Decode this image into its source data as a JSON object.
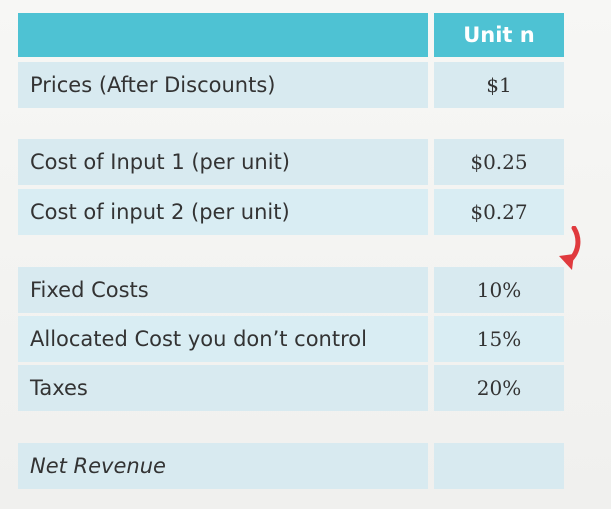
{
  "table": {
    "header": {
      "label": "",
      "value": "Unit n"
    },
    "rows": [
      {
        "label": "Prices (After Discounts)",
        "value": "$1"
      },
      {
        "label": "Cost of Input 1 (per unit)",
        "value": "$0.25"
      },
      {
        "label": "Cost of input 2 (per unit)",
        "value": "$0.27"
      },
      {
        "label": "Fixed Costs",
        "value": "10%"
      },
      {
        "label": "Allocated Cost you don’t control",
        "value": "15%"
      },
      {
        "label": "Taxes",
        "value": "20%"
      },
      {
        "label": "Net Revenue",
        "value": ""
      }
    ]
  },
  "colors": {
    "header": "#4ec2d3",
    "row": "#d8eaf0",
    "arrow": "#e03a3e"
  },
  "icons": {
    "arrow": "curved-arrow-down-left-icon"
  }
}
